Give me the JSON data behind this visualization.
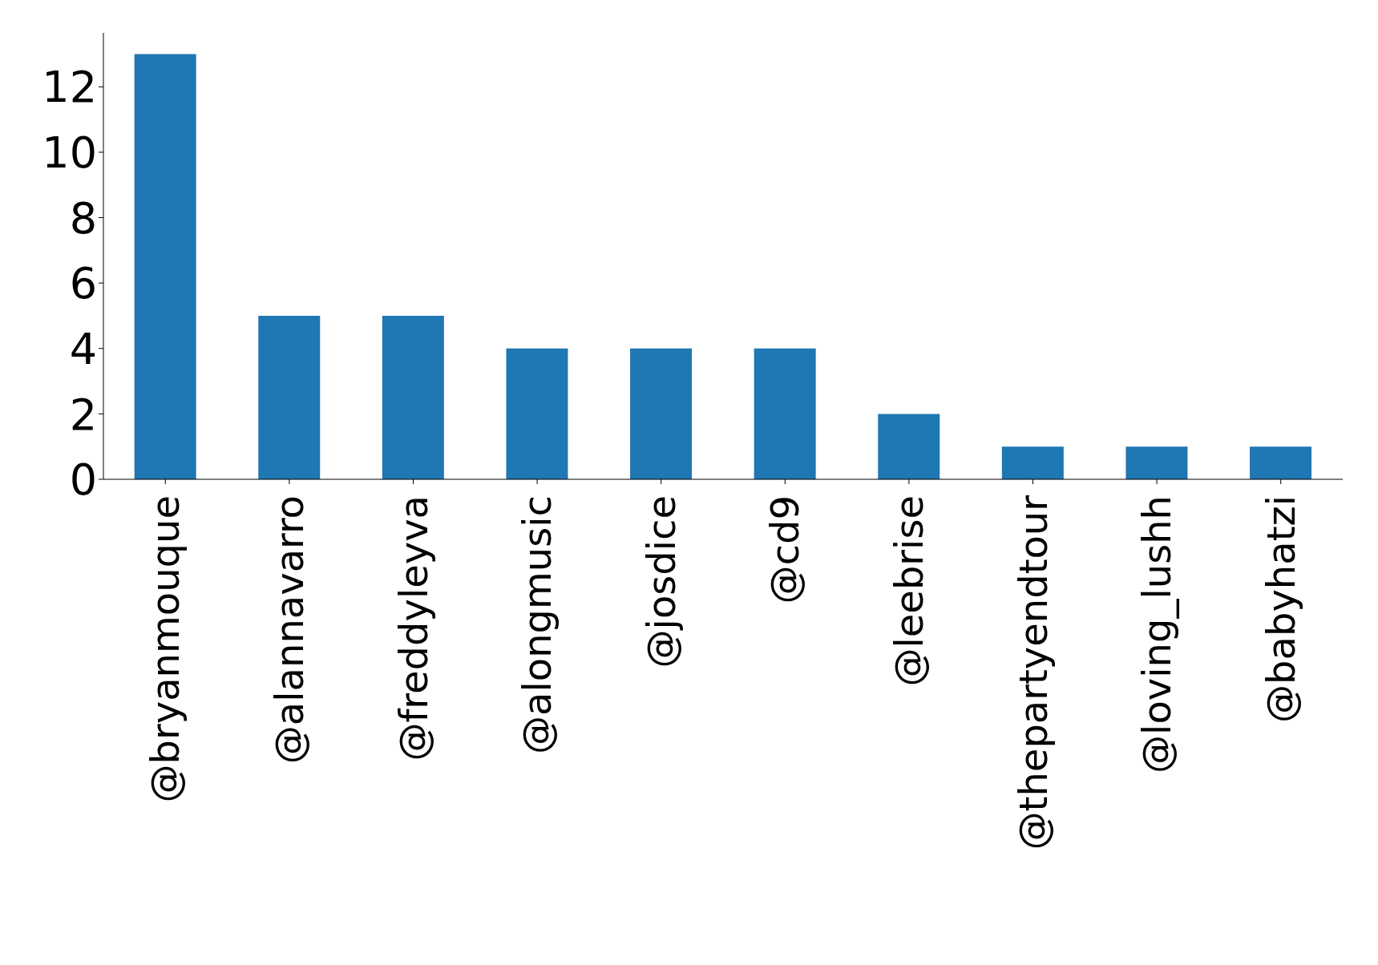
{
  "chart_data": {
    "type": "bar",
    "categories": [
      "@bryanmouque",
      "@alannavarro",
      "@freddyleyva",
      "@alongmusic",
      "@josdice",
      "@cd9",
      "@leebrise",
      "@thepartyendtour",
      "@loving_lushh",
      "@babyhatzi"
    ],
    "values": [
      13,
      5,
      5,
      4,
      4,
      4,
      2,
      1,
      1,
      1
    ],
    "color": "#1f77b4",
    "ylim": [
      0,
      13.65
    ],
    "yticks": [
      0,
      2,
      4,
      6,
      8,
      10,
      12
    ],
    "grid": false,
    "legend": false
  }
}
